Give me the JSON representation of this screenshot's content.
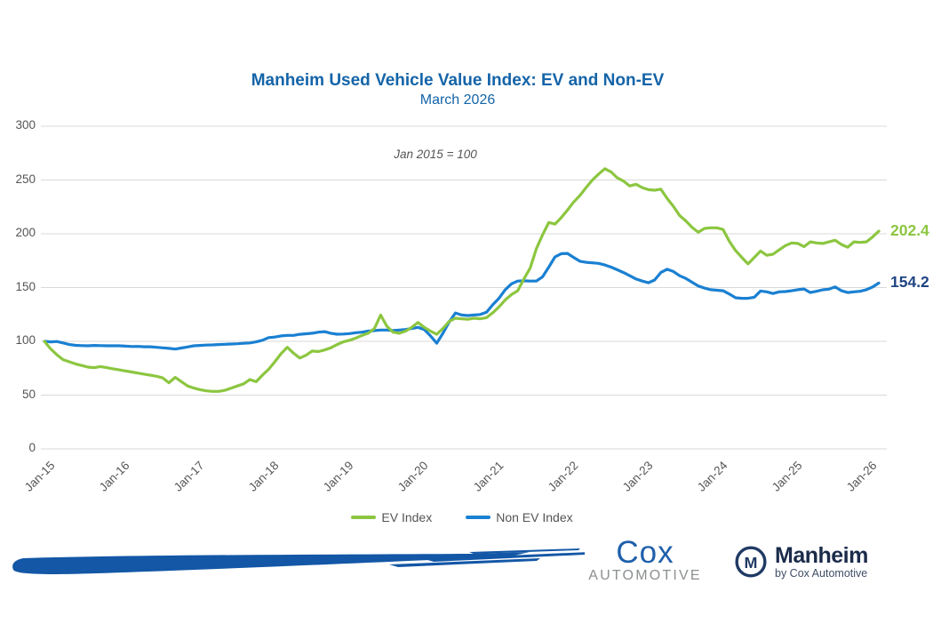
{
  "chart": {
    "title": "Manheim Used Vehicle Value Index: EV and Non-EV",
    "subtitle": "March 2026",
    "annotation": "Jan 2015 = 100",
    "end_labels": {
      "ev": "202.4",
      "non_ev": "154.2"
    }
  },
  "legend": {
    "ev": "EV Index",
    "non_ev": "Non EV Index"
  },
  "colors": {
    "title": "#1464A8",
    "axis_text": "#555555",
    "grid": "#D9D9D9",
    "ev": "#8CC640",
    "non_ev": "#1A80D2",
    "ev_label": "#8CC640",
    "non_ev_label": "#1F4482",
    "swoosh": "#1357A6",
    "cox_blue": "#1E5FAB",
    "cox_gray": "#8C8F91",
    "manheim_navy": "#203A64",
    "manheim_text": "#1B2B4A"
  },
  "chart_data": {
    "type": "line",
    "title": "Manheim Used Vehicle Value Index: EV and Non-EV",
    "subtitle": "March 2026",
    "annotation": "Jan 2015 = 100",
    "x_unit": "month",
    "x_start": "Jan-2015",
    "x_end": "Mar-2026",
    "x_tick_labels": [
      "Jan-15",
      "Jan-16",
      "Jan-17",
      "Jan-18",
      "Jan-19",
      "Jan-20",
      "Jan-21",
      "Jan-22",
      "Jan-23",
      "Jan-24",
      "Jan-25",
      "Jan-26"
    ],
    "y_ticks": [
      0,
      50,
      100,
      150,
      200,
      250,
      300
    ],
    "ylim": [
      0,
      300
    ],
    "grid": "horizontal-only",
    "legend_position": "bottom-center",
    "latest": {
      "ev": 202.4,
      "non_ev": 154.2
    },
    "series": [
      {
        "name": "EV Index",
        "color": "#8CC640",
        "values": [
          100,
          93,
          87.5,
          83,
          81,
          79,
          77.5,
          76,
          75.5,
          76.5,
          75.5,
          74.5,
          73.5,
          72.5,
          71.5,
          70.5,
          69.5,
          68.5,
          67.5,
          66,
          61.5,
          66.5,
          62.5,
          58.5,
          56.5,
          55,
          54,
          53.5,
          53.5,
          54.5,
          56.5,
          58.5,
          60.5,
          64.5,
          62.5,
          68.5,
          74,
          81,
          88.5,
          94.5,
          89,
          84.5,
          87,
          91,
          90.5,
          92,
          94,
          97,
          99.5,
          101,
          103,
          105.5,
          107.5,
          112,
          124.5,
          114,
          108.5,
          107.5,
          109.5,
          113,
          117.5,
          113,
          109.5,
          106.5,
          112,
          118.5,
          121.5,
          121,
          120.5,
          121.5,
          121,
          122,
          126.5,
          132,
          138.5,
          143.5,
          147,
          158,
          168,
          186,
          199,
          210.5,
          209,
          215,
          222,
          229.5,
          235.5,
          243,
          250,
          255.5,
          260.5,
          257.5,
          252,
          249,
          244.5,
          246,
          243,
          241,
          240.5,
          241.5,
          233,
          225.5,
          217,
          212,
          206,
          201.5,
          205,
          205.5,
          205.5,
          204,
          193,
          184.5,
          178,
          172,
          178,
          184,
          180,
          181,
          185,
          189,
          191.5,
          191,
          188,
          192.5,
          191.5,
          191,
          192.5,
          194,
          190,
          187.5,
          192.5,
          192,
          192.5,
          197,
          202.4
        ]
      },
      {
        "name": "Non EV Index",
        "color": "#1A80D2",
        "values": [
          100,
          99.5,
          99.8,
          98.5,
          97,
          96.3,
          96,
          95.9,
          96.2,
          96,
          95.9,
          95.9,
          95.9,
          95.5,
          95.2,
          95.3,
          95,
          95,
          94.5,
          94,
          93.5,
          92.8,
          93.8,
          94.8,
          95.9,
          96.2,
          96.5,
          96.7,
          97,
          97.3,
          97.5,
          97.8,
          98.2,
          98.5,
          99.5,
          101,
          103.5,
          104,
          105,
          105.5,
          105.5,
          106.5,
          107,
          107.5,
          108.5,
          109,
          107.5,
          106.6,
          106.8,
          107.2,
          108,
          108.5,
          109.5,
          110,
          110.5,
          110.5,
          110,
          110.5,
          111,
          112,
          113,
          111,
          105,
          98.3,
          107.5,
          118,
          126.4,
          124.5,
          124,
          124.5,
          125,
          127,
          134,
          140,
          148,
          153.5,
          156,
          156.3,
          156,
          156,
          160,
          169,
          178.5,
          181.5,
          181.7,
          178,
          174.5,
          173.5,
          173,
          172.5,
          171,
          169,
          166.5,
          164,
          161,
          158,
          156,
          154.5,
          157,
          164,
          167,
          165,
          161,
          158.5,
          155,
          151.5,
          149.5,
          148,
          147.5,
          147,
          144,
          140.5,
          140,
          140,
          141,
          146.8,
          146,
          144.5,
          146,
          146.3,
          147,
          148,
          148.7,
          145.4,
          146.5,
          147.9,
          148.5,
          150.6,
          147,
          145.4,
          146,
          146.5,
          148,
          150.5,
          154.2
        ]
      }
    ]
  },
  "footer": {
    "cox_line1": "Cox",
    "cox_line2": "AUTOMOTIVE",
    "manheim": "Manheim",
    "manheim_sub": "by Cox Automotive",
    "manheim_monogram": "M"
  }
}
